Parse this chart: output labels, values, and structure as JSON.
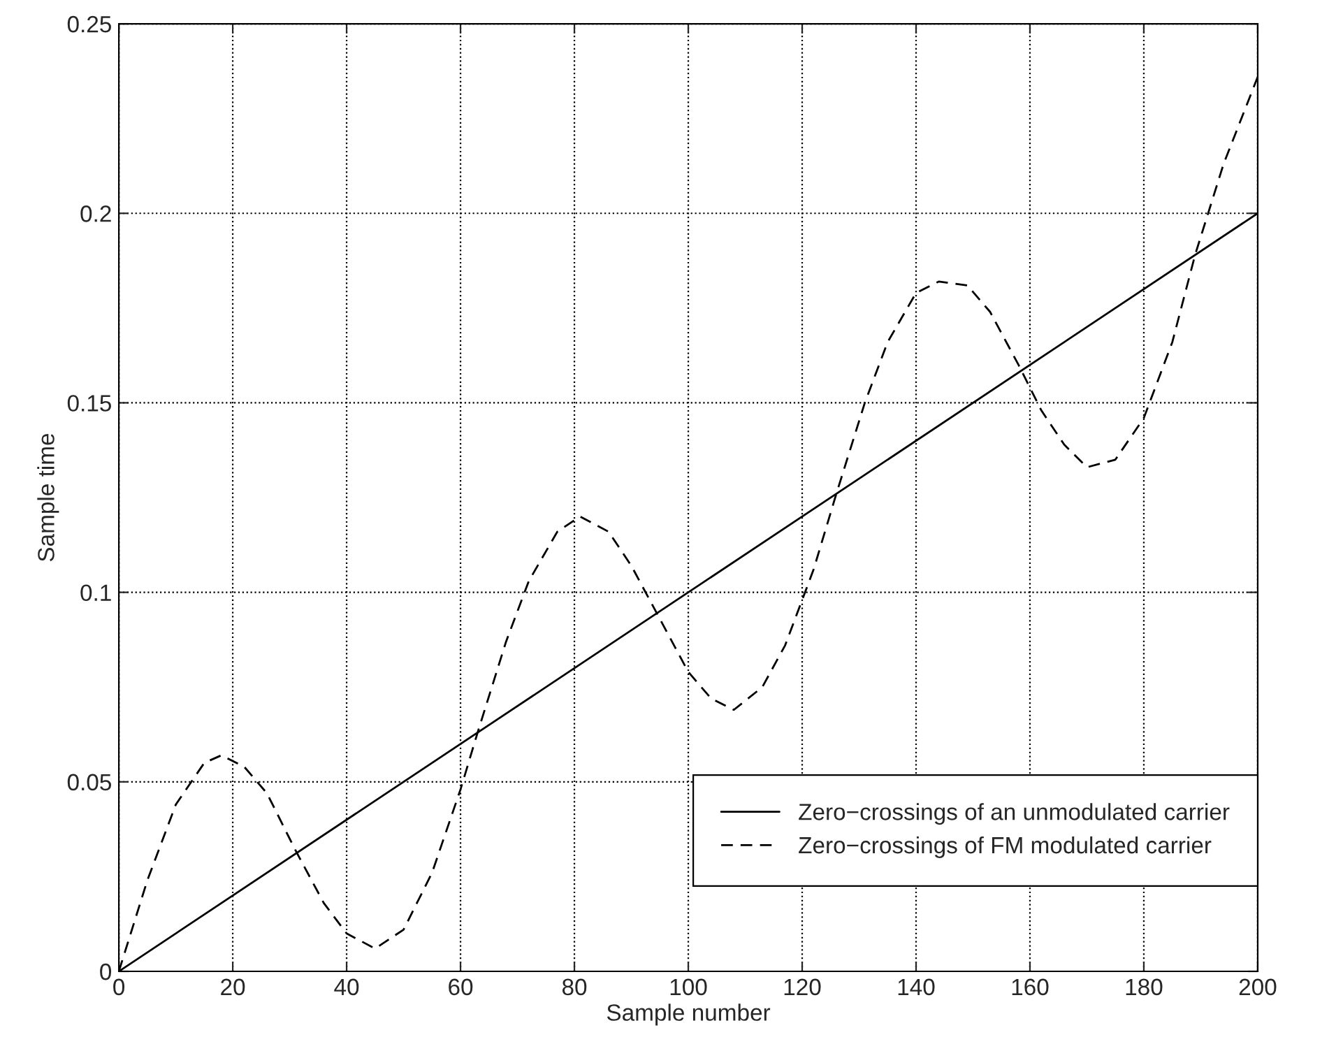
{
  "chart_data": {
    "type": "line",
    "xlabel": "Sample number",
    "ylabel": "Sample time",
    "xlim": [
      0,
      200
    ],
    "ylim": [
      0,
      0.25
    ],
    "xticks": [
      0,
      20,
      40,
      60,
      80,
      100,
      120,
      140,
      160,
      180,
      200
    ],
    "yticks": [
      0,
      0.05,
      0.1,
      0.15,
      0.2,
      0.25
    ],
    "grid": true,
    "legend": "bottom right",
    "series": [
      {
        "name": "Zero−crossings of an unmodulated carrier",
        "color": "#000000",
        "line_style": "solid",
        "x": [
          0,
          200
        ],
        "values": [
          0,
          0.2
        ]
      },
      {
        "name": "Zero−crossings of FM modulated carrier",
        "color": "#000000",
        "line_style": "dashed",
        "x": [
          0,
          5,
          10,
          15,
          18,
          22,
          26,
          31,
          36,
          40,
          45,
          50,
          55,
          60,
          63,
          68,
          72,
          77,
          81,
          86,
          90,
          95,
          100,
          104,
          108,
          113,
          117,
          122,
          126,
          131,
          135,
          140,
          144,
          149,
          153,
          158,
          162,
          166,
          170,
          175,
          180,
          185,
          189,
          194,
          200
        ],
        "values": [
          0,
          0.024,
          0.044,
          0.055,
          0.057,
          0.054,
          0.047,
          0.032,
          0.018,
          0.01,
          0.006,
          0.011,
          0.026,
          0.048,
          0.063,
          0.087,
          0.103,
          0.116,
          0.12,
          0.116,
          0.107,
          0.093,
          0.079,
          0.072,
          0.069,
          0.075,
          0.086,
          0.106,
          0.126,
          0.15,
          0.166,
          0.179,
          0.182,
          0.181,
          0.174,
          0.16,
          0.148,
          0.139,
          0.133,
          0.135,
          0.146,
          0.166,
          0.189,
          0.213,
          0.236
        ]
      }
    ]
  }
}
